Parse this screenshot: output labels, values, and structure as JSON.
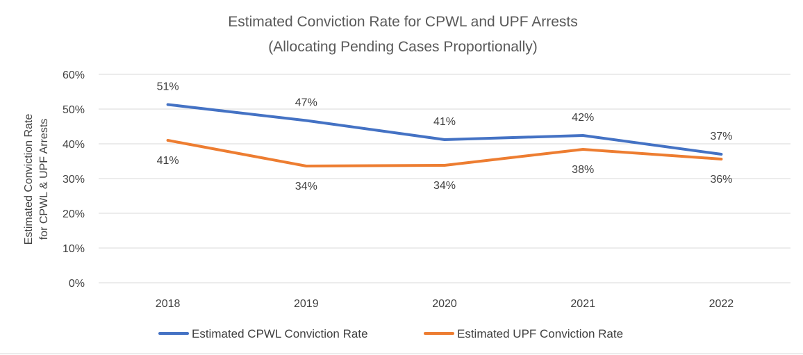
{
  "chart_data": {
    "type": "line",
    "title": "Estimated Conviction Rate for CPWL and UPF Arrests",
    "subtitle": "(Allocating Pending Cases Proportionally)",
    "ylabel_line1": "Estimated Conviction Rate",
    "ylabel_line2": "for CPWL & UPF Arrests",
    "xlabel": "",
    "categories": [
      "2018",
      "2019",
      "2020",
      "2021",
      "2022"
    ],
    "ylim": [
      0,
      0.6
    ],
    "yticks": [
      {
        "value": 0.0,
        "label": "0%"
      },
      {
        "value": 0.1,
        "label": "10%"
      },
      {
        "value": 0.2,
        "label": "20%"
      },
      {
        "value": 0.3,
        "label": "30%"
      },
      {
        "value": 0.4,
        "label": "40%"
      },
      {
        "value": 0.5,
        "label": "50%"
      },
      {
        "value": 0.6,
        "label": "60%"
      }
    ],
    "grid": true,
    "legend_position": "bottom",
    "series": [
      {
        "name": "Estimated CPWL Conviction Rate",
        "color": "#4472C4",
        "values": [
          0.513,
          0.467,
          0.412,
          0.424,
          0.37
        ],
        "labels": [
          "51%",
          "47%",
          "41%",
          "42%",
          "37%"
        ],
        "label_position": "above"
      },
      {
        "name": "Estimated UPF Conviction Rate",
        "color": "#ED7D31",
        "values": [
          0.41,
          0.336,
          0.338,
          0.384,
          0.356
        ],
        "labels": [
          "41%",
          "34%",
          "34%",
          "38%",
          "36%"
        ],
        "label_position": "below"
      }
    ]
  }
}
